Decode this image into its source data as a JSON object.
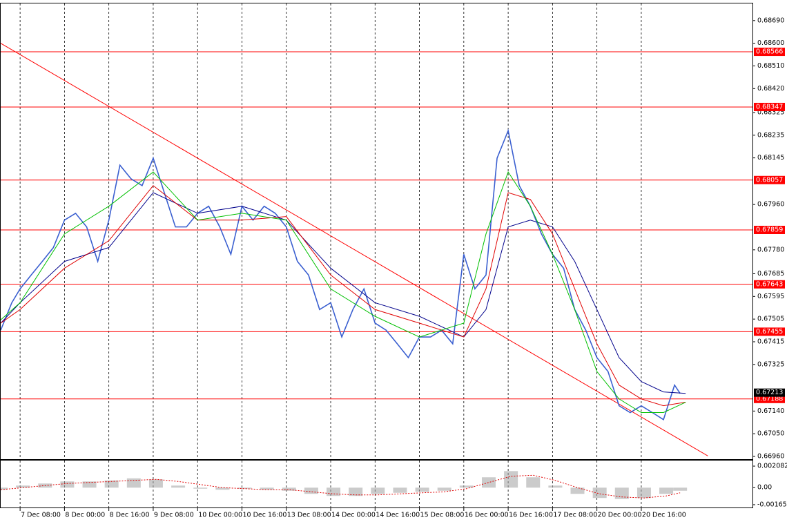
{
  "chart_data": [
    {
      "type": "line",
      "xlim": [
        -7,
        264.1
      ],
      "ylim": [
        0.66949,
        0.68758
      ],
      "xticks": [
        {
          "value": 0,
          "label": "7 Dec 08:00"
        },
        {
          "value": 16,
          "label": "8 Dec 00:00"
        },
        {
          "value": 32,
          "label": "8 Dec 16:00"
        },
        {
          "value": 48,
          "label": "9 Dec 08:00"
        },
        {
          "value": 64,
          "label": "10 Dec 00:00"
        },
        {
          "value": 80,
          "label": "10 Dec 16:00"
        },
        {
          "value": 96,
          "label": "13 Dec 08:00"
        },
        {
          "value": 112,
          "label": "14 Dec 00:00"
        },
        {
          "value": 128,
          "label": "14 Dec 16:00"
        },
        {
          "value": 144,
          "label": "15 Dec 08:00"
        },
        {
          "value": 160,
          "label": "16 Dec 00:00"
        },
        {
          "value": 176,
          "label": "16 Dec 16:00"
        },
        {
          "value": 192,
          "label": "17 Dec 08:00"
        },
        {
          "value": 208,
          "label": "20 Dec 00:00"
        },
        {
          "value": 224,
          "label": "20 Dec 16:00"
        }
      ],
      "yticks": [
        {
          "value": 0.6869,
          "label": "0.68690"
        },
        {
          "value": 0.686,
          "label": "0.68600"
        },
        {
          "value": 0.6851,
          "label": "0.68510"
        },
        {
          "value": 0.6842,
          "label": "0.68420"
        },
        {
          "value": 0.68325,
          "label": "0.68325"
        },
        {
          "value": 0.68235,
          "label": "0.68235"
        },
        {
          "value": 0.68145,
          "label": "0.68145"
        },
        {
          "value": 0.6796,
          "label": "0.67960"
        },
        {
          "value": 0.6778,
          "label": "0.67780"
        },
        {
          "value": 0.67685,
          "label": "0.67685"
        },
        {
          "value": 0.67595,
          "label": "0.67595"
        },
        {
          "value": 0.67505,
          "label": "0.67505"
        },
        {
          "value": 0.67415,
          "label": "0.67415"
        },
        {
          "value": 0.67325,
          "label": "0.67325"
        },
        {
          "value": 0.6714,
          "label": "0.67140"
        },
        {
          "value": 0.6705,
          "label": "0.67050"
        },
        {
          "value": 0.6696,
          "label": "0.66960"
        }
      ],
      "grid": true,
      "series": [
        {
          "color": "#3a5fd0",
          "x": [
            -7,
            -3,
            0,
            4,
            8,
            12,
            16,
            20,
            24,
            28,
            32,
            36,
            40,
            44,
            48,
            52,
            56,
            60,
            64,
            68,
            72,
            76,
            80,
            84,
            88,
            92,
            96,
            100,
            104,
            108,
            112,
            116,
            120,
            124,
            128,
            132,
            136,
            140,
            144,
            148,
            152,
            156,
            160,
            164,
            168,
            172,
            176,
            180,
            184,
            188,
            192,
            196,
            200,
            204,
            208,
            212,
            216,
            220,
            224,
            228,
            232,
            236,
            238
          ],
          "values": [
            0.67461,
            0.6757,
            0.67625,
            0.6768,
            0.67734,
            0.67789,
            0.67898,
            0.67925,
            0.67871,
            0.67734,
            0.67898,
            0.68116,
            0.68062,
            0.68035,
            0.68144,
            0.68007,
            0.67871,
            0.67871,
            0.67925,
            0.67953,
            0.67871,
            0.67762,
            0.67953,
            0.67898,
            0.67953,
            0.67925,
            0.67871,
            0.67734,
            0.6768,
            0.67543,
            0.6757,
            0.67434,
            0.67543,
            0.67625,
            0.67489,
            0.67461,
            0.67407,
            0.67352,
            0.67434,
            0.67434,
            0.67461,
            0.67407,
            0.67762,
            0.67625,
            0.6768,
            0.68144,
            0.68253,
            0.68035,
            0.67953,
            0.67843,
            0.67762,
            0.67707,
            0.67543,
            0.67461,
            0.67352,
            0.67297,
            0.67161,
            0.67134,
            0.67161,
            0.67134,
            0.67106,
            0.67243,
            0.6721
          ]
        },
        {
          "color": "#00008b",
          "x": [
            -7,
            0,
            16,
            32,
            48,
            64,
            80,
            96,
            112,
            128,
            144,
            160,
            168,
            176,
            184,
            192,
            200,
            208,
            216,
            224,
            232,
            240
          ],
          "values": [
            0.67489,
            0.6757,
            0.67734,
            0.67789,
            0.68007,
            0.67925,
            0.67953,
            0.67898,
            0.67707,
            0.6757,
            0.67516,
            0.67434,
            0.67543,
            0.67871,
            0.67898,
            0.67871,
            0.67734,
            0.67543,
            0.67352,
            0.67257,
            0.67216,
            0.6721
          ]
        },
        {
          "color": "#e00000",
          "x": [
            -7,
            0,
            16,
            32,
            48,
            64,
            80,
            96,
            112,
            128,
            144,
            160,
            168,
            176,
            184,
            192,
            200,
            208,
            216,
            224,
            232,
            240
          ],
          "values": [
            0.67489,
            0.67543,
            0.67707,
            0.67816,
            0.68035,
            0.67898,
            0.67898,
            0.67912,
            0.6768,
            0.67543,
            0.67489,
            0.67434,
            0.67625,
            0.68007,
            0.6798,
            0.67843,
            0.67625,
            0.67407,
            0.67243,
            0.67188,
            0.67161,
            0.67175
          ]
        },
        {
          "color": "#00c000",
          "x": [
            -7,
            0,
            16,
            32,
            48,
            64,
            80,
            96,
            112,
            128,
            144,
            160,
            168,
            176,
            184,
            192,
            200,
            208,
            216,
            224,
            232,
            240
          ],
          "values": [
            0.67502,
            0.6757,
            0.67843,
            0.67953,
            0.68089,
            0.67898,
            0.67925,
            0.67898,
            0.67625,
            0.67516,
            0.67434,
            0.67489,
            0.67843,
            0.68089,
            0.67953,
            0.67762,
            0.67543,
            0.67297,
            0.67188,
            0.67134,
            0.67134,
            0.67175
          ]
        }
      ],
      "trendline": {
        "color": "#ff0000",
        "x": [
          -7,
          248
        ],
        "values": [
          0.686,
          0.66962
        ]
      },
      "levels": {
        "color": "#ff0000",
        "values": [
          0.68566,
          0.68347,
          0.68057,
          0.67859,
          0.67643,
          0.67455,
          0.67188
        ],
        "value_labels": [
          "0.68566",
          "0.68347",
          "0.68057",
          "0.67859",
          "0.67643",
          "0.67455",
          "0.67188"
        ]
      },
      "last_price": {
        "value": 0.67213,
        "label": "0.67213"
      }
    },
    {
      "type": "bar",
      "ylim": [
        -0.00192,
        0.00262
      ],
      "yticks": [
        {
          "value": 0.002082,
          "label": "0.002082"
        },
        {
          "value": 0,
          "label": "0.00"
        },
        {
          "value": -0.00165,
          "label": "-0.00165"
        }
      ],
      "color": "#a0a0a0",
      "x": [
        -7,
        1,
        9,
        17,
        25,
        33,
        41,
        49,
        57,
        65,
        73,
        81,
        89,
        97,
        105,
        113,
        121,
        129,
        137,
        145,
        153,
        161,
        169,
        177,
        185,
        193,
        201,
        209,
        217,
        225,
        233,
        238
      ],
      "values": [
        -0.0002,
        0.0002,
        0.0004,
        0.0006,
        0.0006,
        0.0007,
        0.0009,
        0.0008,
        0.0002,
        -0.0001,
        -0.0002,
        -0.0001,
        -0.0002,
        -0.0003,
        -0.0006,
        -0.0008,
        -0.0008,
        -0.0006,
        -0.0005,
        -0.0004,
        -0.0003,
        0.0002,
        0.001,
        0.0016,
        0.001,
        0.0002,
        -0.0006,
        -0.001,
        -0.0011,
        -0.001,
        -0.0006,
        -0.0003
      ],
      "signal": {
        "color": "#e00000",
        "values": [
          -0.0002,
          0,
          0.0002,
          0.0004,
          0.0005,
          0.0006,
          0.0007,
          0.0008,
          0.0006,
          0.0003,
          0,
          -0.0001,
          -0.0002,
          -0.0002,
          -0.0004,
          -0.0006,
          -0.0007,
          -0.0007,
          -0.0006,
          -0.0005,
          -0.0004,
          -0.0001,
          0.0005,
          0.0011,
          0.0012,
          0.0007,
          0,
          -0.0006,
          -0.0009,
          -0.001,
          -0.0008,
          -0.0005
        ]
      }
    }
  ]
}
